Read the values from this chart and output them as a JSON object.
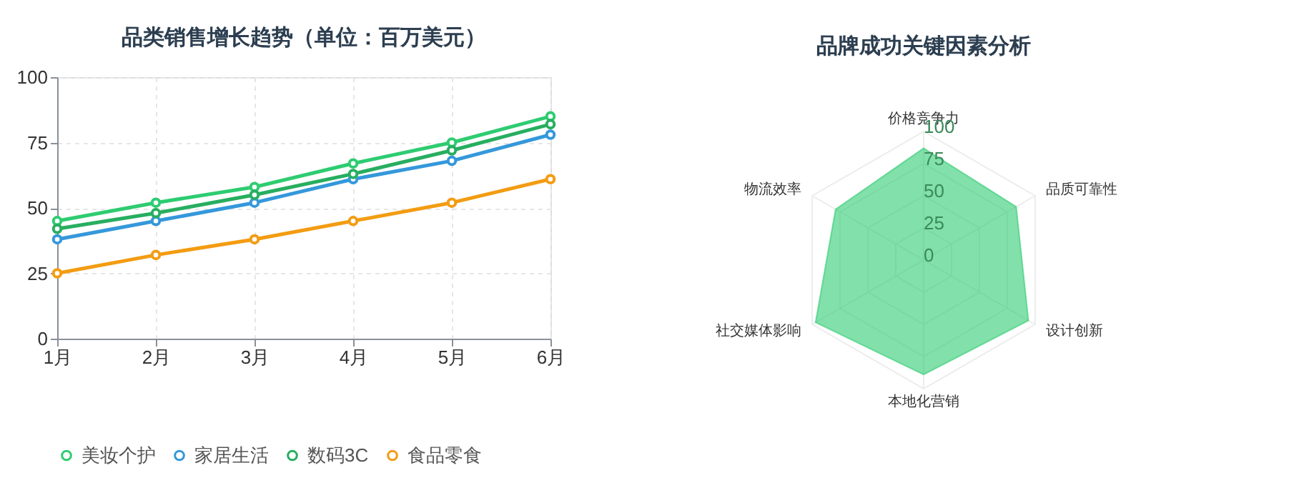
{
  "chart_data": [
    {
      "type": "line",
      "title": "品类销售增长趋势（单位：百万美元）",
      "categories": [
        "1月",
        "2月",
        "3月",
        "4月",
        "5月",
        "6月"
      ],
      "series": [
        {
          "name": "美妆个护",
          "color": "#2ecc71",
          "values": [
            45,
            52,
            58,
            67,
            75,
            85
          ]
        },
        {
          "name": "家居生活",
          "color": "#3498db",
          "values": [
            38,
            45,
            52,
            61,
            68,
            78
          ]
        },
        {
          "name": "数码3C",
          "color": "#27ae60",
          "values": [
            42,
            48,
            55,
            63,
            72,
            82
          ]
        },
        {
          "name": "食品零食",
          "color": "#f39c12",
          "values": [
            25,
            32,
            38,
            45,
            52,
            61
          ]
        }
      ],
      "ylim": [
        0,
        100
      ],
      "yticks": [
        0,
        25,
        50,
        75,
        100
      ],
      "grid": true,
      "legend": "bottom",
      "marker": "circle",
      "line_style": "solid"
    },
    {
      "type": "radar",
      "title": "品牌成功关键因素分析",
      "categories": [
        "价格竞争力",
        "品质可靠性",
        "设计创新",
        "本地化营销",
        "社交媒体影响",
        "物流效率"
      ],
      "series": [
        {
          "color": "#2ecc71",
          "values": [
            87,
            83,
            94,
            89,
            97,
            79
          ]
        }
      ],
      "ylim": [
        0,
        100
      ],
      "yticks": [
        0,
        25,
        50,
        75,
        100
      ],
      "grid": true
    }
  ]
}
